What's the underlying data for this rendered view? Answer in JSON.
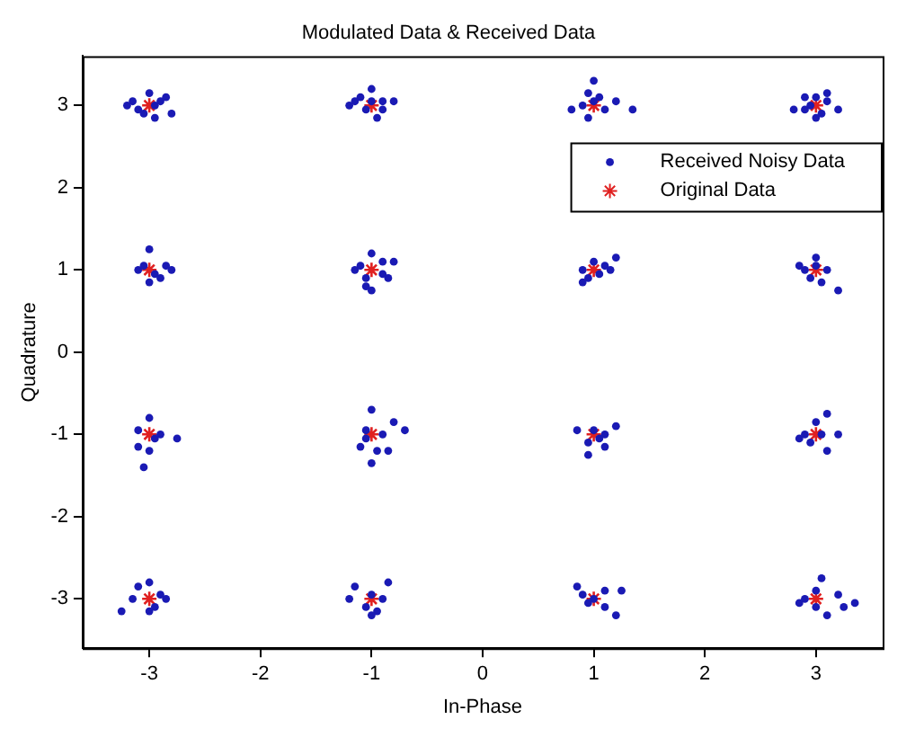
{
  "chart_data": {
    "type": "scatter",
    "title": "Modulated Data & Received Data",
    "xlabel": "In-Phase",
    "ylabel": "Quadrature",
    "xlim": [
      -3.6,
      3.6
    ],
    "ylim": [
      -3.6,
      3.6
    ],
    "xticks": [
      -3,
      -2,
      -1,
      0,
      1,
      2,
      3
    ],
    "yticks": [
      -3,
      -2,
      -1,
      0,
      1,
      2,
      3
    ],
    "grid": false,
    "legend": "top right",
    "series": [
      {
        "name": "Received Noisy Data",
        "color": "#1a1ab4",
        "marker": "circle",
        "x": [
          -3.15,
          -3.1,
          -3.0,
          -2.95,
          -2.85,
          -2.8,
          -3.05,
          -2.9,
          -3.2,
          -2.95,
          -1.1,
          -1.0,
          -0.9,
          -1.05,
          -0.8,
          -1.2,
          -0.95,
          -1.0,
          -0.9,
          -1.15,
          1.0,
          0.95,
          1.05,
          0.8,
          1.35,
          0.9,
          1.1,
          0.95,
          1.2,
          1.0,
          2.8,
          2.9,
          3.0,
          3.1,
          3.2,
          3.0,
          2.95,
          3.05,
          3.1,
          2.9,
          -3.0,
          -3.1,
          -2.95,
          -2.85,
          -3.0,
          -2.9,
          -3.05,
          -2.8,
          -1.1,
          -1.0,
          -0.9,
          -1.05,
          -1.0,
          -0.8,
          -0.9,
          -1.15,
          -0.85,
          -1.05,
          1.0,
          0.9,
          1.1,
          1.2,
          0.95,
          1.05,
          0.9,
          1.15,
          2.85,
          3.0,
          3.1,
          2.95,
          3.05,
          3.2,
          3.0,
          2.9,
          -3.1,
          -3.0,
          -2.9,
          -2.75,
          -3.1,
          -3.05,
          -2.95,
          -3.0,
          -1.0,
          -1.05,
          -0.9,
          -0.8,
          -0.7,
          -1.1,
          -0.95,
          -1.0,
          -0.85,
          -1.05,
          0.85,
          1.0,
          1.1,
          1.2,
          0.95,
          1.05,
          0.95,
          1.1,
          2.85,
          3.0,
          3.1,
          3.05,
          3.2,
          2.95,
          3.1,
          2.9,
          -3.1,
          -3.0,
          -2.9,
          -3.15,
          -2.95,
          -3.0,
          -3.25,
          -2.85,
          -1.15,
          -1.0,
          -0.85,
          -1.05,
          -0.95,
          -1.2,
          -0.9,
          -1.0,
          0.85,
          1.0,
          1.1,
          1.25,
          0.95,
          1.1,
          1.2,
          0.9,
          2.85,
          3.0,
          3.05,
          3.2,
          3.35,
          3.0,
          3.1,
          2.9,
          3.25
        ],
        "values": [
          3.05,
          2.95,
          3.15,
          3.0,
          3.1,
          2.9,
          2.9,
          3.05,
          3.0,
          2.85,
          3.1,
          3.2,
          3.05,
          2.95,
          3.05,
          3.0,
          2.85,
          3.05,
          2.95,
          3.05,
          3.3,
          3.15,
          3.1,
          2.95,
          2.95,
          3.0,
          2.95,
          2.85,
          3.05,
          3.05,
          2.95,
          3.1,
          3.1,
          3.05,
          2.95,
          2.85,
          3.0,
          2.9,
          3.15,
          2.95,
          1.25,
          1.0,
          0.95,
          1.05,
          0.85,
          0.9,
          1.05,
          1.0,
          1.05,
          1.2,
          1.1,
          0.9,
          0.75,
          1.1,
          0.95,
          1.0,
          0.9,
          0.8,
          1.1,
          1.0,
          1.05,
          1.15,
          0.9,
          0.95,
          0.85,
          1.0,
          1.05,
          1.15,
          1.0,
          0.9,
          0.85,
          0.75,
          1.05,
          1.0,
          -0.95,
          -0.8,
          -1.0,
          -1.05,
          -1.15,
          -1.4,
          -1.05,
          -1.2,
          -0.7,
          -0.95,
          -1.0,
          -0.85,
          -0.95,
          -1.15,
          -1.2,
          -1.35,
          -1.2,
          -1.05,
          -0.95,
          -0.95,
          -1.0,
          -0.9,
          -1.1,
          -1.05,
          -1.25,
          -1.15,
          -1.05,
          -0.85,
          -0.75,
          -1.0,
          -1.0,
          -1.1,
          -1.2,
          -1.0,
          -2.85,
          -2.8,
          -2.95,
          -3.0,
          -3.1,
          -3.15,
          -3.15,
          -3.0,
          -2.85,
          -2.95,
          -2.8,
          -3.1,
          -3.15,
          -3.0,
          -3.0,
          -3.2,
          -2.85,
          -3.0,
          -2.9,
          -2.9,
          -3.05,
          -3.1,
          -3.2,
          -2.95,
          -3.05,
          -2.9,
          -2.75,
          -2.95,
          -3.05,
          -3.1,
          -3.2,
          -3.0,
          -3.1
        ]
      },
      {
        "name": "Original Data",
        "color": "#e02020",
        "marker": "cross",
        "x": [
          -3,
          -1,
          1,
          3,
          -3,
          -1,
          1,
          3,
          -3,
          -1,
          1,
          3,
          -3,
          -1,
          1,
          3
        ],
        "values": [
          3,
          3,
          3,
          3,
          1,
          1,
          1,
          1,
          -1,
          -1,
          -1,
          -1,
          -3,
          -3,
          -3,
          -3
        ]
      }
    ]
  }
}
